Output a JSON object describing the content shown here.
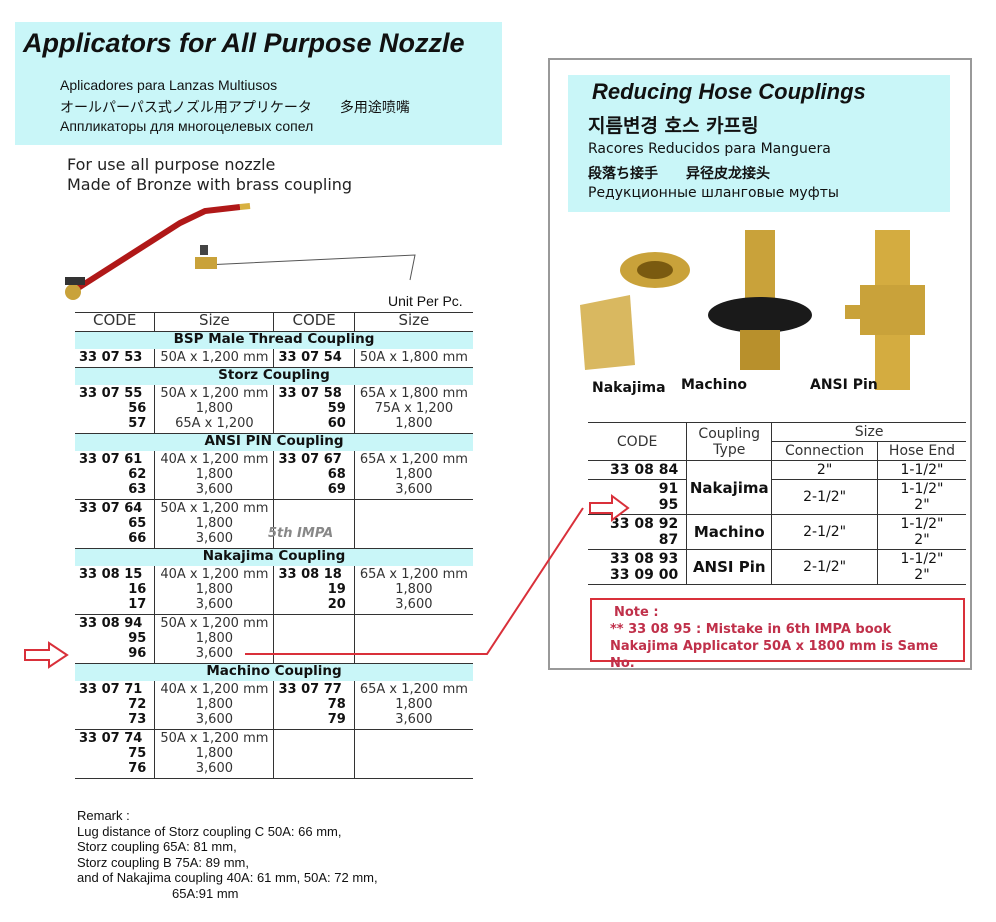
{
  "left": {
    "title": "Applicators for All Purpose Nozzle",
    "subtitles": [
      "Aplicadores para Lanzas Multiusos",
      "オールパーパス式ノズル用アプリケータ　　多用途喷嘴",
      "Аппликаторы для многоцелевых сопел"
    ],
    "description": [
      "For use all purpose nozzle",
      "Made of Bronze with brass coupling"
    ],
    "unit": "Unit Per Pc.",
    "annotation": "5th IMPA",
    "headers": [
      "CODE",
      "Size",
      "CODE",
      "Size"
    ],
    "sections": [
      {
        "title": "BSP Male Thread Coupling",
        "rows": [
          {
            "c1": [
              "33 07 53"
            ],
            "s1": [
              "50A x 1,200 mm"
            ],
            "c2": [
              "33 07 54"
            ],
            "s2": [
              "50A x 1,800 mm"
            ]
          }
        ]
      },
      {
        "title": "Storz Coupling",
        "rows": [
          {
            "c1": [
              "33 07 55",
              "56",
              "57"
            ],
            "s1": [
              "50A x 1,200 mm",
              "1,800",
              "65A x 1,200"
            ],
            "c2": [
              "33 07 58",
              "59",
              "60"
            ],
            "s2": [
              "65A x 1,800 mm",
              "75A x 1,200",
              "1,800"
            ]
          }
        ]
      },
      {
        "title": "ANSI PIN Coupling",
        "rows": [
          {
            "c1": [
              "33 07 61",
              "62",
              "63"
            ],
            "s1": [
              "40A x 1,200 mm",
              "1,800",
              "3,600"
            ],
            "c2": [
              "33 07 67",
              "68",
              "69"
            ],
            "s2": [
              "65A x 1,200 mm",
              "1,800",
              "3,600"
            ]
          },
          {
            "c1": [
              "33 07 64",
              "65",
              "66"
            ],
            "s1": [
              "50A x 1,200 mm",
              "1,800",
              "3,600"
            ],
            "c2": [],
            "s2": []
          }
        ]
      },
      {
        "title": "Nakajima Coupling",
        "rows": [
          {
            "c1": [
              "33 08 15",
              "16",
              "17"
            ],
            "s1": [
              "40A x 1,200 mm",
              "1,800",
              "3,600"
            ],
            "c2": [
              "33 08 18",
              "19",
              "20"
            ],
            "s2": [
              "65A x 1,200 mm",
              "1,800",
              "3,600"
            ]
          },
          {
            "c1": [
              "33 08 94",
              "95",
              "96"
            ],
            "s1": [
              "50A x 1,200 mm",
              "1,800",
              "3,600"
            ],
            "c2": [],
            "s2": []
          }
        ]
      },
      {
        "title": "Machino Coupling",
        "rows": [
          {
            "c1": [
              "33 07 71",
              "72",
              "73"
            ],
            "s1": [
              "40A x 1,200 mm",
              "1,800",
              "3,600"
            ],
            "c2": [
              "33 07 77",
              "78",
              "79"
            ],
            "s2": [
              "65A x 1,200 mm",
              "1,800",
              "3,600"
            ]
          },
          {
            "c1": [
              "33 07 74",
              "75",
              "76"
            ],
            "s1": [
              "50A x 1,200 mm",
              "1,800",
              "3,600"
            ],
            "c2": [],
            "s2": []
          }
        ]
      }
    ],
    "remark": [
      "Remark :",
      "Lug distance of Storz coupling C 50A:  66 mm,",
      "Storz coupling 65A:  81 mm,",
      "Storz coupling B 75A:  89 mm,",
      "and of Nakajima coupling 40A:  61 mm, 50A:  72 mm,",
      "65A:91 mm"
    ]
  },
  "right": {
    "title": "Reducing Hose Couplings",
    "subtitles": [
      "지름변경 호스 카프링",
      "Racores Reducidos para Manguera",
      "段落ち接手　　异径皮龙接头",
      "Редукционные шланговые муфты"
    ],
    "image_labels": [
      "Nakajima",
      "Machino",
      "ANSI Pin"
    ],
    "headers": {
      "code": "CODE",
      "type": "Coupling Type",
      "size": "Size",
      "connection": "Connection",
      "hose_end": "Hose End"
    },
    "rows": [
      {
        "codes": [
          "33 08 84"
        ],
        "type": "Nakajima",
        "connection": "2\"",
        "hose": [
          "1-1/2\""
        ]
      },
      {
        "codes": [
          "91",
          "95"
        ],
        "type": "",
        "connection": "2-1/2\"",
        "hose": [
          "1-1/2\"",
          "2\""
        ]
      },
      {
        "codes": [
          "33 08 92",
          "87"
        ],
        "type": "Machino",
        "connection": "2-1/2\"",
        "hose": [
          "1-1/2\"",
          "2\""
        ]
      },
      {
        "codes": [
          "33 08 93",
          "33 09 00"
        ],
        "type": "ANSI Pin",
        "connection": "2-1/2\"",
        "hose": [
          "1-1/2\"",
          "2\""
        ]
      }
    ],
    "note": [
      "Note :",
      "** 33 08 95 : Mistake in 6th IMPA book",
      "Nakajima Applicator 50A x 1800 mm is Same No."
    ]
  },
  "colors": {
    "header_bg": "#c9f6f8",
    "highlight_red": "#d9303a",
    "brass": "#c9a23a"
  }
}
